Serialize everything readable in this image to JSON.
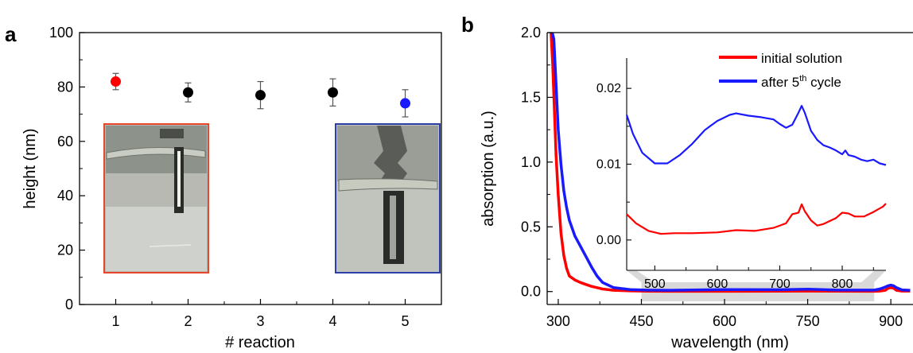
{
  "panel_labels": {
    "a": "a",
    "b": "b"
  },
  "colors": {
    "red": "#ff0000",
    "blue": "#1a1aff",
    "black": "#000000",
    "photo_frame_red": "#e8452a",
    "photo_frame_blue": "#2c3fa8",
    "zoom_band": "#d9d9d9"
  },
  "chart_data": [
    {
      "id": "a",
      "type": "scatter",
      "xlabel": "# reaction",
      "ylabel": "height (nm)",
      "xlim": [
        0.5,
        5.5
      ],
      "ylim": [
        0,
        100
      ],
      "x_ticks": [
        1,
        2,
        3,
        4,
        5
      ],
      "x_tick_labels": [
        "1",
        "2",
        "3",
        "4",
        "5"
      ],
      "y_ticks": [
        0,
        20,
        40,
        60,
        80,
        100
      ],
      "y_tick_labels": [
        "0",
        "20",
        "40",
        "60",
        "80",
        "100"
      ],
      "grid": false,
      "points": [
        {
          "x": 1,
          "y": 82,
          "err": 3,
          "color": "#ff0000"
        },
        {
          "x": 2,
          "y": 78,
          "err": 3.5,
          "color": "#000000"
        },
        {
          "x": 3,
          "y": 77,
          "err": 5,
          "color": "#000000"
        },
        {
          "x": 4,
          "y": 78,
          "err": 5,
          "color": "#000000"
        },
        {
          "x": 5,
          "y": 74,
          "err": 5,
          "color": "#1a1aff"
        }
      ],
      "insets": [
        {
          "type": "photo",
          "near_point": 1,
          "frame_color": "#e8452a"
        },
        {
          "type": "photo",
          "near_point": 5,
          "frame_color": "#2c3fa8"
        }
      ]
    },
    {
      "id": "b",
      "type": "line",
      "xlabel": "wavelength (nm)",
      "ylabel": "absorption (a.u.)",
      "xlim": [
        280,
        940
      ],
      "ylim": [
        -0.1,
        2.0
      ],
      "x_ticks": [
        300,
        450,
        600,
        750,
        900
      ],
      "x_tick_labels": [
        "300",
        "450",
        "600",
        "750",
        "900"
      ],
      "y_ticks": [
        0.0,
        0.5,
        1.0,
        1.5,
        2.0
      ],
      "y_tick_labels": [
        "0.0",
        "0.5",
        "1.0",
        "1.5",
        "2.0"
      ],
      "grid": false,
      "highlight_range": [
        450,
        870
      ],
      "series": [
        {
          "name": "initial solution",
          "color": "#ff0000",
          "x": [
            287,
            290,
            293,
            296,
            300,
            305,
            310,
            315,
            320,
            330,
            340,
            350,
            360,
            370,
            380,
            400,
            430,
            460,
            500,
            600,
            700,
            750,
            800,
            870,
            880,
            890,
            895,
            900,
            905,
            910,
            920,
            935
          ],
          "y": [
            2.0,
            1.75,
            1.4,
            1.05,
            0.75,
            0.45,
            0.28,
            0.18,
            0.12,
            0.09,
            0.07,
            0.055,
            0.04,
            0.03,
            0.02,
            0.01,
            0.005,
            0.003,
            0.002,
            0.002,
            0.003,
            0.004,
            0.003,
            0.002,
            0.004,
            0.01,
            0.025,
            0.03,
            0.025,
            0.01,
            0.004,
            0.004
          ]
        },
        {
          "name": "after 5th cycle",
          "color": "#1a1aff",
          "x": [
            289,
            292,
            296,
            300,
            305,
            310,
            315,
            320,
            330,
            340,
            350,
            360,
            370,
            380,
            400,
            430,
            460,
            500,
            600,
            700,
            750,
            800,
            870,
            880,
            890,
            895,
            900,
            905,
            910,
            920,
            935
          ],
          "y": [
            2.0,
            1.95,
            1.6,
            1.25,
            0.98,
            0.78,
            0.65,
            0.55,
            0.43,
            0.35,
            0.27,
            0.19,
            0.12,
            0.07,
            0.03,
            0.015,
            0.011,
            0.01,
            0.015,
            0.014,
            0.018,
            0.012,
            0.011,
            0.02,
            0.035,
            0.045,
            0.05,
            0.045,
            0.03,
            0.013,
            0.01
          ]
        }
      ],
      "legend": {
        "placement": "top-right",
        "entries": [
          {
            "text": "initial solution",
            "color": "#ff0000"
          },
          {
            "text": "after 5",
            "sup": "th",
            "suffix": " cycle",
            "color": "#1a1aff"
          }
        ]
      },
      "inset": {
        "type": "line",
        "xlim": [
          455,
          870
        ],
        "ylim": [
          -0.004,
          0.024
        ],
        "x_ticks": [
          500,
          600,
          700,
          800
        ],
        "x_tick_labels": [
          "500",
          "600",
          "700",
          "800"
        ],
        "y_ticks": [
          0.0,
          0.01,
          0.02
        ],
        "y_tick_labels": [
          "0.00",
          "0.01",
          "0.02"
        ],
        "series": [
          {
            "name": "after 5th cycle",
            "color": "#1a1aff",
            "x": [
              455,
              465,
              480,
              500,
              520,
              540,
              560,
              580,
              600,
              620,
              630,
              650,
              670,
              690,
              700,
              710,
              720,
              730,
              735,
              740,
              750,
              760,
              770,
              780,
              790,
              800,
              805,
              810,
              820,
              830,
              840,
              850,
              860,
              870
            ],
            "y": [
              0.0165,
              0.014,
              0.0115,
              0.0101,
              0.0101,
              0.0112,
              0.0127,
              0.0145,
              0.0157,
              0.0165,
              0.0167,
              0.0164,
              0.0162,
              0.0159,
              0.0153,
              0.0148,
              0.0152,
              0.0168,
              0.0177,
              0.0168,
              0.0144,
              0.0132,
              0.0125,
              0.0122,
              0.0118,
              0.0113,
              0.0118,
              0.0112,
              0.011,
              0.0106,
              0.0104,
              0.0106,
              0.0101,
              0.0099
            ]
          },
          {
            "name": "initial solution",
            "color": "#ff0000",
            "x": [
              455,
              470,
              490,
              510,
              530,
              560,
              600,
              630,
              660,
              690,
              710,
              720,
              730,
              735,
              740,
              750,
              760,
              770,
              790,
              800,
              810,
              820,
              835,
              850,
              865,
              870
            ],
            "y": [
              0.0034,
              0.0022,
              0.0012,
              0.0008,
              0.0009,
              0.0009,
              0.001,
              0.0013,
              0.0012,
              0.0016,
              0.0022,
              0.0034,
              0.0036,
              0.0047,
              0.0038,
              0.0026,
              0.0019,
              0.0021,
              0.0029,
              0.0036,
              0.0035,
              0.0031,
              0.0031,
              0.0037,
              0.0044,
              0.0048
            ]
          }
        ]
      }
    }
  ]
}
